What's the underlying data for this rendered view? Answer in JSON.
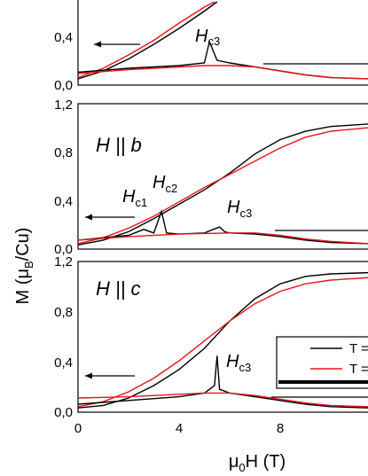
{
  "figure": {
    "ylabel_main": "M (μ",
    "ylabel_sub": "B",
    "ylabel_tail": "/Cu)",
    "xlabel_main": "μ",
    "xlabel_sub": "0",
    "xlabel_tail": "H (T)",
    "series_colors": {
      "black": "#000000",
      "red": "#e8141b"
    }
  },
  "panels": [
    {
      "direction_label": "",
      "annotations": [
        {
          "main": "H",
          "sub": "c3"
        }
      ],
      "yticks": [
        "0,0",
        "0,4"
      ]
    },
    {
      "direction_label": "H || b",
      "annotations": [
        {
          "main": "H",
          "sub": "c1"
        },
        {
          "main": "H",
          "sub": "c2"
        },
        {
          "main": "H",
          "sub": "c3"
        }
      ],
      "yticks": [
        "0,0",
        "0,4",
        "0,8",
        "1,2"
      ]
    },
    {
      "direction_label": "H || c",
      "annotations": [
        {
          "main": "H",
          "sub": "c3"
        }
      ],
      "yticks": [
        "0,0",
        "0,4",
        "0,8",
        "1,2"
      ],
      "legend": [
        {
          "label": "T =",
          "color": "#000000"
        },
        {
          "label": "T =",
          "color": "#e8141b"
        }
      ]
    }
  ],
  "xticks": [
    "0",
    "4",
    "8"
  ],
  "chart_data": [
    {
      "type": "line",
      "panel": "top",
      "xlim": [
        0,
        11.5
      ],
      "ylim": [
        0,
        0.6
      ],
      "series": [
        {
          "color": "black",
          "x": [
            0,
            1,
            2,
            3,
            4,
            5,
            5.5
          ],
          "y": [
            0.02,
            0.08,
            0.17,
            0.28,
            0.4,
            0.53,
            0.6
          ]
        },
        {
          "color": "red",
          "x": [
            0,
            1,
            2,
            3,
            4,
            5,
            5.4
          ],
          "y": [
            0.03,
            0.1,
            0.2,
            0.31,
            0.44,
            0.56,
            0.6
          ]
        },
        {
          "color": "black",
          "x": [
            0,
            2,
            4,
            5,
            5.2,
            5.5,
            6,
            7,
            8,
            9,
            10,
            11.5
          ],
          "y": [
            0.07,
            0.1,
            0.12,
            0.14,
            0.3,
            0.16,
            0.14,
            0.11,
            0.08,
            0.05,
            0.03,
            0.02
          ]
        },
        {
          "color": "red",
          "x": [
            0,
            2,
            4,
            5,
            6,
            7,
            8,
            9,
            10,
            11.5
          ],
          "y": [
            0.06,
            0.09,
            0.11,
            0.12,
            0.12,
            0.11,
            0.08,
            0.05,
            0.03,
            0.02
          ]
        }
      ]
    },
    {
      "type": "line",
      "panel": "middle",
      "xlim": [
        0,
        11.5
      ],
      "ylim": [
        0,
        1.2
      ],
      "series": [
        {
          "color": "black",
          "x": [
            0,
            1,
            2,
            3,
            4,
            5,
            6,
            7,
            8,
            9,
            10,
            11.5
          ],
          "y": [
            0.02,
            0.06,
            0.13,
            0.24,
            0.36,
            0.48,
            0.62,
            0.78,
            0.9,
            0.97,
            1.01,
            1.03
          ]
        },
        {
          "color": "red",
          "x": [
            0,
            1,
            2,
            3,
            4,
            5,
            6,
            7,
            8,
            9,
            10,
            11.5
          ],
          "y": [
            0.03,
            0.08,
            0.16,
            0.26,
            0.38,
            0.5,
            0.61,
            0.72,
            0.83,
            0.92,
            0.97,
            1.0
          ]
        },
        {
          "color": "black",
          "x": [
            0,
            1,
            2,
            2.6,
            3,
            3.3,
            3.5,
            4,
            5,
            5.6,
            5.8,
            6,
            7,
            8,
            9,
            10,
            11.5
          ],
          "y": [
            0.06,
            0.08,
            0.1,
            0.15,
            0.12,
            0.3,
            0.12,
            0.11,
            0.12,
            0.17,
            0.13,
            0.12,
            0.11,
            0.09,
            0.06,
            0.04,
            0.03
          ]
        },
        {
          "color": "red",
          "x": [
            0,
            2,
            4,
            6,
            7,
            8,
            9,
            10,
            11.5
          ],
          "y": [
            0.06,
            0.09,
            0.11,
            0.12,
            0.12,
            0.1,
            0.07,
            0.05,
            0.03
          ]
        }
      ]
    },
    {
      "type": "line",
      "panel": "bottom",
      "xlim": [
        0,
        11.5
      ],
      "ylim": [
        0,
        1.2
      ],
      "series": [
        {
          "name": "T =",
          "color": "black",
          "x": [
            0,
            1,
            2,
            3,
            4,
            5,
            6,
            7,
            8,
            9,
            10,
            11.5
          ],
          "y": [
            0.02,
            0.04,
            0.1,
            0.2,
            0.33,
            0.5,
            0.72,
            0.9,
            1.02,
            1.08,
            1.1,
            1.11
          ]
        },
        {
          "name": "T =",
          "color": "red",
          "x": [
            0,
            1,
            2,
            3,
            4,
            5,
            6,
            7,
            8,
            9,
            10,
            11.5
          ],
          "y": [
            0.03,
            0.07,
            0.15,
            0.26,
            0.4,
            0.56,
            0.72,
            0.86,
            0.96,
            1.02,
            1.05,
            1.07
          ]
        },
        {
          "color": "black",
          "x": [
            0,
            2,
            4,
            5,
            5.4,
            5.5,
            5.6,
            6,
            7,
            8,
            9,
            10,
            11.5
          ],
          "y": [
            0.05,
            0.08,
            0.11,
            0.14,
            0.2,
            0.44,
            0.17,
            0.14,
            0.11,
            0.08,
            0.05,
            0.03,
            0.02
          ]
        },
        {
          "color": "red",
          "x": [
            0,
            2,
            4,
            5,
            6,
            7,
            8,
            9,
            10,
            11.5
          ],
          "y": [
            0.1,
            0.11,
            0.13,
            0.14,
            0.14,
            0.12,
            0.09,
            0.06,
            0.04,
            0.03
          ]
        }
      ]
    }
  ]
}
